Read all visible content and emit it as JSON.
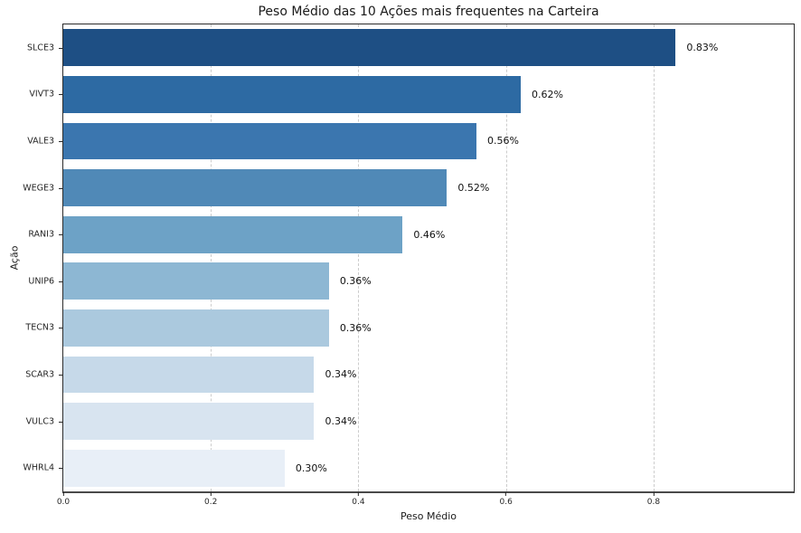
{
  "chart_data": {
    "type": "bar",
    "orientation": "horizontal",
    "title": "Peso Médio das 10 Ações mais frequentes na Carteira",
    "xlabel": "Peso Médio",
    "ylabel": "Ação",
    "categories": [
      "SLCE3",
      "VIVT3",
      "VALE3",
      "WEGE3",
      "RANI3",
      "UNIP6",
      "TECN3",
      "SCAR3",
      "VULC3",
      "WHRL4"
    ],
    "values": [
      0.83,
      0.62,
      0.56,
      0.52,
      0.46,
      0.36,
      0.36,
      0.34,
      0.34,
      0.3
    ],
    "value_labels": [
      "0.83%",
      "0.62%",
      "0.56%",
      "0.52%",
      "0.46%",
      "0.36%",
      "0.36%",
      "0.34%",
      "0.34%",
      "0.30%"
    ],
    "bar_colors": [
      "#1e4f84",
      "#2d6aa3",
      "#3b76af",
      "#5089b7",
      "#6da2c6",
      "#8db7d3",
      "#abc9de",
      "#c6d9e9",
      "#d8e4f0",
      "#e8eff7"
    ],
    "xticks": [
      0.0,
      0.2,
      0.4,
      0.6,
      0.8
    ],
    "xtick_labels": [
      "0.0",
      "0.2",
      "0.4",
      "0.6",
      "0.8"
    ],
    "xlim": [
      0,
      0.99
    ],
    "grid": "vertical-dashed",
    "grid_color": "#cccccc",
    "legend": "none",
    "background_color": "#ffffff"
  }
}
